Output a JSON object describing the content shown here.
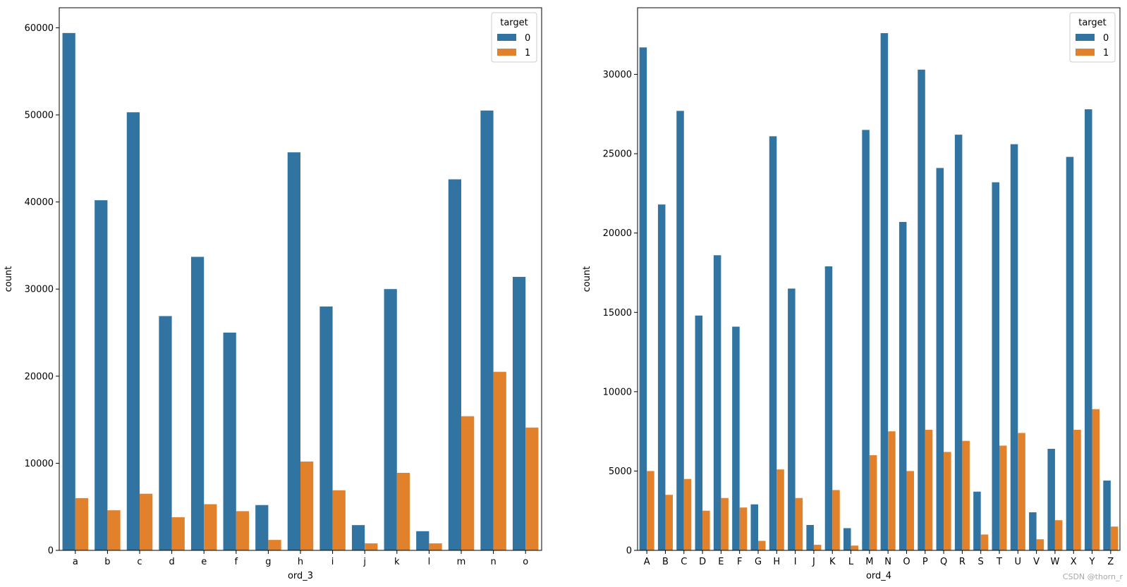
{
  "colors": {
    "target_0": "#3274a1",
    "target_1": "#e1812c"
  },
  "watermark": "CSDN @thorn_r",
  "chart_data": [
    {
      "type": "bar",
      "title": "",
      "xlabel": "ord_3",
      "ylabel": "count",
      "ylim": [
        0,
        62300
      ],
      "yticks": [
        0,
        10000,
        20000,
        30000,
        40000,
        50000,
        60000
      ],
      "legend": {
        "title": "target",
        "entries": [
          "0",
          "1"
        ],
        "placement": "top-right"
      },
      "categories": [
        "a",
        "b",
        "c",
        "d",
        "e",
        "f",
        "g",
        "h",
        "i",
        "j",
        "k",
        "l",
        "m",
        "n",
        "o"
      ],
      "series": [
        {
          "name": "0",
          "values": [
            59400,
            40200,
            50300,
            26900,
            33700,
            25000,
            5200,
            45700,
            28000,
            2900,
            30000,
            2200,
            42600,
            50500,
            31400
          ]
        },
        {
          "name": "1",
          "values": [
            6000,
            4600,
            6500,
            3800,
            5300,
            4500,
            1200,
            10200,
            6900,
            800,
            8900,
            800,
            15400,
            20500,
            14100
          ]
        }
      ]
    },
    {
      "type": "bar",
      "title": "",
      "xlabel": "ord_4",
      "ylabel": "count",
      "ylim": [
        0,
        34200
      ],
      "yticks": [
        0,
        5000,
        10000,
        15000,
        20000,
        25000,
        30000
      ],
      "legend": {
        "title": "target",
        "entries": [
          "0",
          "1"
        ],
        "placement": "top-right"
      },
      "categories": [
        "A",
        "B",
        "C",
        "D",
        "E",
        "F",
        "G",
        "H",
        "I",
        "J",
        "K",
        "L",
        "M",
        "N",
        "O",
        "P",
        "Q",
        "R",
        "S",
        "T",
        "U",
        "V",
        "W",
        "X",
        "Y",
        "Z"
      ],
      "series": [
        {
          "name": "0",
          "values": [
            31700,
            21800,
            27700,
            14800,
            18600,
            14100,
            2900,
            26100,
            16500,
            1600,
            17900,
            1400,
            26500,
            32600,
            20700,
            30300,
            24100,
            26200,
            3700,
            23200,
            25600,
            2400,
            6400,
            24800,
            27800,
            4400
          ]
        },
        {
          "name": "1",
          "values": [
            5000,
            3500,
            4500,
            2500,
            3300,
            2700,
            600,
            5100,
            3300,
            350,
            3800,
            300,
            6000,
            7500,
            5000,
            7600,
            6200,
            6900,
            1000,
            6600,
            7400,
            700,
            1900,
            7600,
            8900,
            1500
          ]
        }
      ]
    }
  ]
}
